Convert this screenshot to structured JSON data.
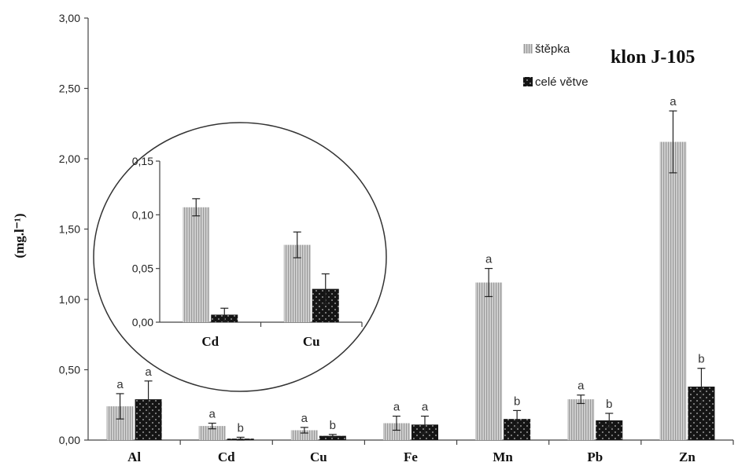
{
  "chart_data": {
    "type": "bar",
    "title": "klon J-105",
    "ylabel": "(mg.l⁻¹)",
    "ylim": [
      0,
      3
    ],
    "yticks": [
      "0,00",
      "0,50",
      "1,00",
      "1,50",
      "2,00",
      "2,50",
      "3,00"
    ],
    "categories": [
      "Al",
      "Cd",
      "Cu",
      "Fe",
      "Mn",
      "Pb",
      "Zn"
    ],
    "series": [
      {
        "name": "štěpka",
        "color": "#c4c4c4",
        "pattern": "vertical-stripes",
        "values": [
          0.24,
          0.1,
          0.07,
          0.12,
          1.12,
          0.29,
          2.12
        ],
        "errors": [
          0.09,
          0.02,
          0.02,
          0.05,
          0.1,
          0.03,
          0.22
        ],
        "letters": [
          "a",
          "a",
          "a",
          "a",
          "a",
          "a",
          "a"
        ]
      },
      {
        "name": "celé větve",
        "color": "#151515",
        "pattern": "dots",
        "values": [
          0.29,
          0.01,
          0.03,
          0.11,
          0.15,
          0.14,
          0.38
        ],
        "errors": [
          0.13,
          0.01,
          0.01,
          0.06,
          0.06,
          0.05,
          0.13
        ],
        "letters": [
          "a",
          "b",
          "b",
          "a",
          "b",
          "b",
          "b"
        ]
      }
    ],
    "inset": {
      "ylim": [
        0,
        0.15
      ],
      "yticks": [
        "0,00",
        "0,05",
        "0,10",
        "0,15"
      ],
      "categories": [
        "Cd",
        "Cu"
      ],
      "series": [
        {
          "name": "štěpka",
          "values": [
            0.107,
            0.072
          ],
          "errors": [
            0.008,
            0.012
          ]
        },
        {
          "name": "celé větve",
          "values": [
            0.007,
            0.031
          ],
          "errors": [
            0.006,
            0.014
          ]
        }
      ]
    },
    "legend_position": "top-right"
  }
}
